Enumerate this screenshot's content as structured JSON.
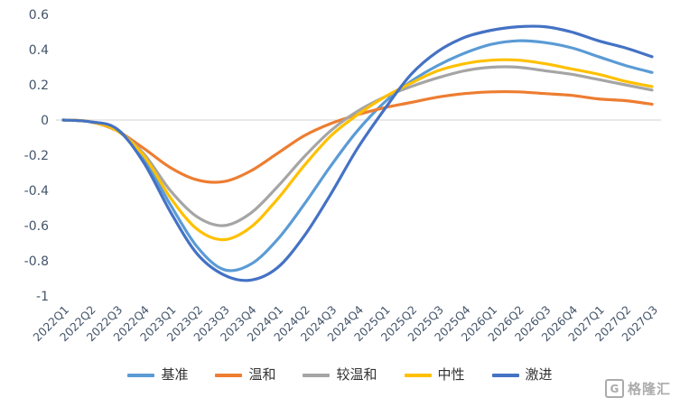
{
  "chart_data": {
    "type": "line",
    "categories": [
      "2022Q1",
      "2022Q2",
      "2022Q3",
      "2022Q4",
      "2023Q1",
      "2023Q2",
      "2023Q3",
      "2023Q4",
      "2024Q1",
      "2024Q2",
      "2024Q3",
      "2024Q4",
      "2025Q1",
      "2025Q2",
      "2025Q3",
      "2025Q4",
      "2026Q1",
      "2026Q2",
      "2026Q3",
      "2026Q4",
      "2027Q1",
      "2027Q2",
      "2027Q3"
    ],
    "series": [
      {
        "name": "基准",
        "color": "#5B9BD5",
        "values": [
          0,
          -0.01,
          -0.05,
          -0.22,
          -0.48,
          -0.72,
          -0.85,
          -0.82,
          -0.68,
          -0.48,
          -0.26,
          -0.06,
          0.1,
          0.22,
          0.31,
          0.38,
          0.43,
          0.45,
          0.44,
          0.41,
          0.36,
          0.31,
          0.27
        ]
      },
      {
        "name": "温和",
        "color": "#ED7D31",
        "values": [
          0,
          -0.01,
          -0.06,
          -0.16,
          -0.27,
          -0.34,
          -0.35,
          -0.29,
          -0.19,
          -0.09,
          -0.02,
          0.03,
          0.07,
          0.1,
          0.13,
          0.15,
          0.16,
          0.16,
          0.15,
          0.14,
          0.12,
          0.11,
          0.09
        ]
      },
      {
        "name": "较温和",
        "color": "#A5A5A5",
        "values": [
          0,
          -0.01,
          -0.06,
          -0.19,
          -0.4,
          -0.55,
          -0.6,
          -0.53,
          -0.38,
          -0.21,
          -0.06,
          0.05,
          0.13,
          0.19,
          0.24,
          0.28,
          0.3,
          0.3,
          0.28,
          0.26,
          0.23,
          0.2,
          0.17
        ]
      },
      {
        "name": "中性",
        "color": "#FFC000",
        "values": [
          0,
          -0.01,
          -0.06,
          -0.2,
          -0.44,
          -0.62,
          -0.68,
          -0.61,
          -0.45,
          -0.26,
          -0.09,
          0.03,
          0.13,
          0.21,
          0.28,
          0.32,
          0.34,
          0.34,
          0.32,
          0.29,
          0.26,
          0.22,
          0.19
        ]
      },
      {
        "name": "激进",
        "color": "#4472C4",
        "values": [
          0,
          -0.01,
          -0.05,
          -0.24,
          -0.52,
          -0.76,
          -0.88,
          -0.91,
          -0.84,
          -0.66,
          -0.42,
          -0.16,
          0.06,
          0.26,
          0.39,
          0.47,
          0.51,
          0.53,
          0.53,
          0.5,
          0.45,
          0.41,
          0.36
        ]
      }
    ],
    "title": "",
    "xlabel": "",
    "ylabel": "",
    "ylim": [
      -1,
      0.6
    ],
    "yticks": [
      0.6,
      0.4,
      0.2,
      0,
      -0.2,
      -0.4,
      -0.6,
      -0.8,
      -1
    ],
    "grid": false,
    "legend_position": "bottom",
    "axis_label_color": "#44546A",
    "zero_line_color": "#D9D9D9",
    "line_width": 3.2
  },
  "watermark": {
    "brand": "格隆汇",
    "icon_letter": "G",
    "color": "#ABABAB"
  }
}
